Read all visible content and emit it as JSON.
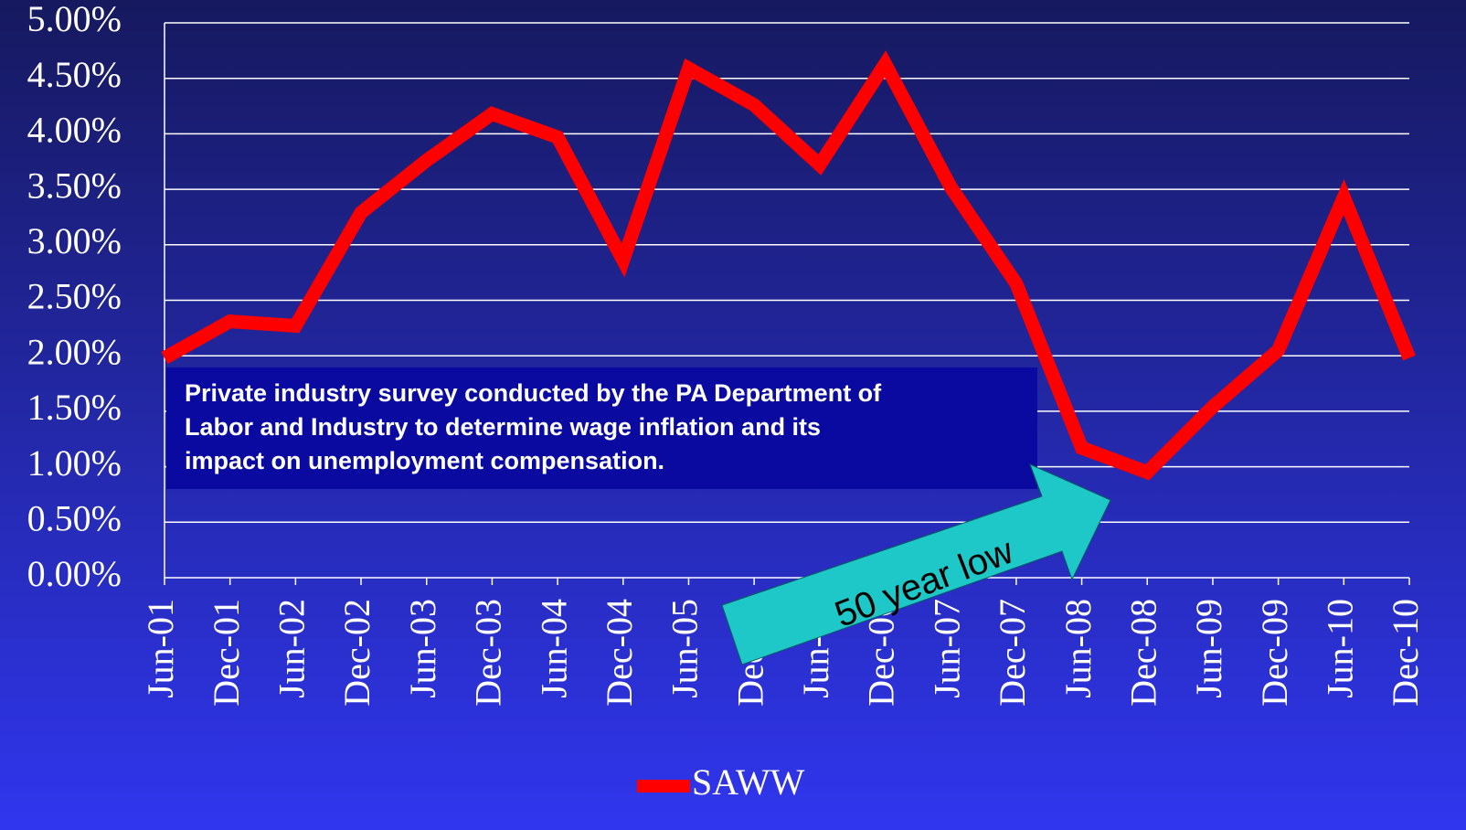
{
  "chart_data": {
    "type": "line",
    "categories": [
      "Jun-01",
      "Dec-01",
      "Jun-02",
      "Dec-02",
      "Jun-03",
      "Dec-03",
      "Jun-04",
      "Dec-04",
      "Jun-05",
      "Dec-05",
      "Jun-06",
      "Dec-06",
      "Jun-07",
      "Dec-07",
      "Jun-08",
      "Dec-08",
      "Jun-09",
      "Dec-09",
      "Jun-10",
      "Dec-10"
    ],
    "series": [
      {
        "name": "SAWW",
        "color": "#ff0000",
        "values": [
          1.98,
          2.31,
          2.27,
          3.29,
          3.76,
          4.18,
          3.97,
          2.86,
          4.59,
          4.26,
          3.72,
          4.63,
          3.52,
          2.65,
          1.17,
          0.95,
          1.54,
          2.05,
          3.43,
          1.98
        ]
      }
    ],
    "ylim": [
      0,
      5
    ],
    "yticks": [
      {
        "value": 0,
        "label": "0.00%"
      },
      {
        "value": 0.5,
        "label": "0.50%"
      },
      {
        "value": 1,
        "label": "1.00%"
      },
      {
        "value": 1.5,
        "label": "1.50%"
      },
      {
        "value": 2,
        "label": "2.00%"
      },
      {
        "value": 2.5,
        "label": "2.50%"
      },
      {
        "value": 3,
        "label": "3.00%"
      },
      {
        "value": 3.5,
        "label": "3.50%"
      },
      {
        "value": 4,
        "label": "4.00%"
      },
      {
        "value": 4.5,
        "label": "4.50%"
      },
      {
        "value": 5,
        "label": "5.00%"
      }
    ],
    "grid": true,
    "legend": "bottom",
    "annotations": [
      {
        "lines": [
          "Private industry survey conducted by the PA Department of",
          "Labor and Industry to determine wage inflation and its",
          "impact on unemployment compensation."
        ]
      },
      {
        "text": "50 year low"
      }
    ]
  }
}
